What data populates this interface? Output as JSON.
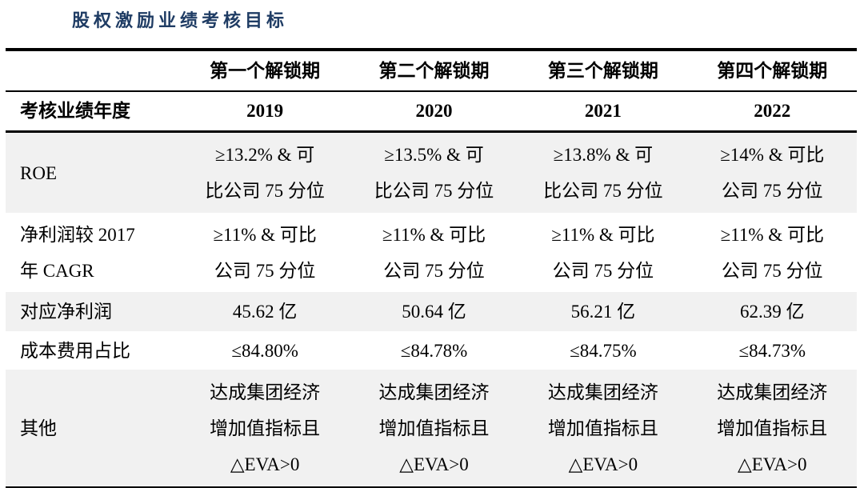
{
  "title": "股权激励业绩考核目标",
  "colors": {
    "title_text": "#1f3c64",
    "stripe_background": "#f1f1f1",
    "rule_lines": "#000000"
  },
  "table": {
    "header": [
      "",
      "第一个解锁期",
      "第二个解锁期",
      "第三个解锁期",
      "第四个解锁期"
    ],
    "year_row": {
      "label": "考核业绩年度",
      "values": [
        "2019",
        "2020",
        "2021",
        "2022"
      ]
    },
    "rows": [
      {
        "label": [
          "ROE"
        ],
        "values": [
          [
            "≥13.2% & 可",
            "比公司 75 分位"
          ],
          [
            "≥13.5% & 可",
            "比公司 75 分位"
          ],
          [
            "≥13.8% & 可",
            "比公司 75 分位"
          ],
          [
            "≥14% & 可比",
            "公司 75 分位"
          ]
        ]
      },
      {
        "label": [
          "净利润较 2017",
          "年 CAGR"
        ],
        "values": [
          [
            "≥11% & 可比",
            "公司 75 分位"
          ],
          [
            "≥11% & 可比",
            "公司 75 分位"
          ],
          [
            "≥11% & 可比",
            "公司 75 分位"
          ],
          [
            "≥11% & 可比",
            "公司 75 分位"
          ]
        ]
      },
      {
        "label": [
          "对应净利润"
        ],
        "values": [
          [
            "45.62 亿"
          ],
          [
            "50.64 亿"
          ],
          [
            "56.21 亿"
          ],
          [
            "62.39 亿"
          ]
        ]
      },
      {
        "label": [
          "成本费用占比"
        ],
        "values": [
          [
            "≤84.80%"
          ],
          [
            "≤84.78%"
          ],
          [
            "≤84.75%"
          ],
          [
            "≤84.73%"
          ]
        ]
      },
      {
        "label": [
          "其他"
        ],
        "values": [
          [
            "达成集团经济",
            "增加值指标且",
            "△EVA>0"
          ],
          [
            "达成集团经济",
            "增加值指标且",
            "△EVA>0"
          ],
          [
            "达成集团经济",
            "增加值指标且",
            "△EVA>0"
          ],
          [
            "达成集团经济",
            "增加值指标且",
            "△EVA>0"
          ]
        ]
      }
    ]
  }
}
